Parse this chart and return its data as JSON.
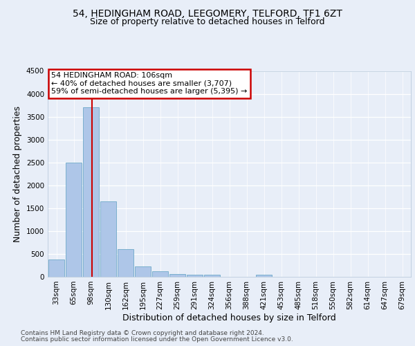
{
  "title1": "54, HEDINGHAM ROAD, LEEGOMERY, TELFORD, TF1 6ZT",
  "title2": "Size of property relative to detached houses in Telford",
  "xlabel": "Distribution of detached houses by size in Telford",
  "ylabel": "Number of detached properties",
  "categories": [
    "33sqm",
    "65sqm",
    "98sqm",
    "130sqm",
    "162sqm",
    "195sqm",
    "227sqm",
    "259sqm",
    "291sqm",
    "324sqm",
    "356sqm",
    "388sqm",
    "421sqm",
    "453sqm",
    "485sqm",
    "518sqm",
    "550sqm",
    "582sqm",
    "614sqm",
    "647sqm",
    "679sqm"
  ],
  "values": [
    375,
    2500,
    3700,
    1650,
    600,
    220,
    115,
    65,
    50,
    50,
    0,
    0,
    50,
    0,
    0,
    0,
    0,
    0,
    0,
    0,
    0
  ],
  "bar_color": "#aec6e8",
  "bar_edge_color": "#5a9fc0",
  "ylim": [
    0,
    4500
  ],
  "yticks": [
    0,
    500,
    1000,
    1500,
    2000,
    2500,
    3000,
    3500,
    4000,
    4500
  ],
  "red_line_x": 2.05,
  "annotation_title": "54 HEDINGHAM ROAD: 106sqm",
  "annotation_line1": "← 40% of detached houses are smaller (3,707)",
  "annotation_line2": "59% of semi-detached houses are larger (5,395) →",
  "annotation_box_color": "#ffffff",
  "annotation_box_edge": "#cc0000",
  "red_line_color": "#cc0000",
  "footer_line1": "Contains HM Land Registry data © Crown copyright and database right 2024.",
  "footer_line2": "Contains public sector information licensed under the Open Government Licence v3.0.",
  "background_color": "#e8eef8",
  "grid_color": "#ffffff",
  "title1_fontsize": 10,
  "title2_fontsize": 9,
  "tick_fontsize": 7.5,
  "label_fontsize": 9,
  "footer_fontsize": 6.5
}
